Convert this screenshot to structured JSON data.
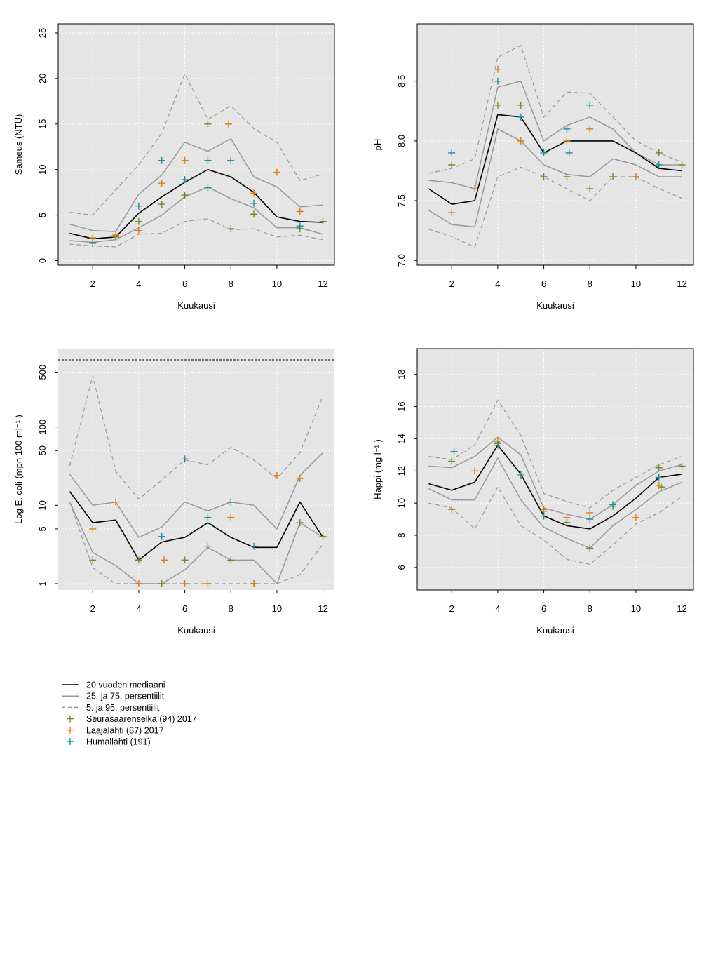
{
  "legend": {
    "items": [
      {
        "label": "20 vuoden mediaani",
        "kind": "line",
        "color": "#000000"
      },
      {
        "label": "25. ja 75. persentiilit",
        "kind": "line",
        "color": "#999999"
      },
      {
        "label": "5. ja 95. persentiilit",
        "kind": "dash",
        "color": "#999999"
      },
      {
        "label": "Seurasaarenselkä (94) 2017",
        "kind": "plus",
        "color": "#6b8e23"
      },
      {
        "label": "Laajalahti (87) 2017",
        "kind": "plus",
        "color": "#e07b10"
      },
      {
        "label": "Humallahti (191)",
        "kind": "plus",
        "color": "#17929a"
      }
    ]
  },
  "colors": {
    "panel_bg": "#e5e5e5",
    "median": "#000000",
    "quartile": "#999999",
    "percentile": "#999999",
    "seurasaarenselka": "#6b8e23",
    "laajalahti": "#e07b10",
    "humallahti": "#17929a"
  },
  "chart_data": [
    {
      "type": "line",
      "xlabel": "Kuukausi",
      "ylabel": "Sameus (NTU)",
      "xlim": [
        0.5,
        12.5
      ],
      "ylim": [
        -0.5,
        26
      ],
      "xticks": [
        2,
        4,
        6,
        8,
        10,
        12
      ],
      "yticks": [
        0,
        5,
        10,
        15,
        20,
        25
      ],
      "grid": true,
      "x": [
        1,
        2,
        3,
        4,
        5,
        6,
        7,
        8,
        9,
        10,
        11,
        12
      ],
      "series": [
        {
          "role": "p95",
          "values": [
            5.3,
            5.0,
            7.8,
            10.5,
            14.0,
            20.5,
            15.5,
            17.0,
            14.5,
            13.0,
            8.8,
            9.5
          ]
        },
        {
          "role": "q75",
          "values": [
            4.0,
            3.3,
            3.2,
            7.3,
            9.4,
            13.0,
            12.0,
            13.4,
            9.2,
            8.1,
            5.9,
            6.1
          ]
        },
        {
          "role": "median",
          "values": [
            3.0,
            2.4,
            2.6,
            5.2,
            7.0,
            8.6,
            10.0,
            9.2,
            7.5,
            4.8,
            4.3,
            4.2
          ]
        },
        {
          "role": "q25",
          "values": [
            2.2,
            2.0,
            2.3,
            3.6,
            5.0,
            7.0,
            8.1,
            6.8,
            5.8,
            3.6,
            3.6,
            2.9
          ]
        },
        {
          "role": "p5",
          "values": [
            1.8,
            1.6,
            1.5,
            2.9,
            3.0,
            4.3,
            4.6,
            3.4,
            3.5,
            2.6,
            2.8,
            2.3
          ]
        }
      ],
      "points": [
        {
          "site": "seurasaarenselka",
          "x": [
            2,
            3,
            4,
            5,
            6,
            7,
            8,
            9,
            11,
            12
          ],
          "y": [
            2.0,
            2.6,
            4.3,
            6.2,
            7.2,
            15.0,
            3.5,
            5.1,
            3.5,
            4.3
          ]
        },
        {
          "site": "laajalahti",
          "x": [
            2,
            3,
            4,
            5,
            6,
            7.9,
            9,
            10,
            11
          ],
          "y": [
            2.5,
            2.8,
            3.3,
            8.5,
            11.0,
            15.0,
            7.4,
            9.7,
            5.4
          ]
        },
        {
          "site": "humallahti",
          "x": [
            2,
            4,
            5,
            6,
            7,
            7,
            8,
            9,
            11
          ],
          "y": [
            1.9,
            6.0,
            11.0,
            8.9,
            11.0,
            8.0,
            11.0,
            6.3,
            3.8
          ]
        }
      ]
    },
    {
      "type": "line",
      "xlabel": "Kuukausi",
      "ylabel": "pH",
      "xlim": [
        0.5,
        12.5
      ],
      "ylim": [
        6.96,
        8.98
      ],
      "xticks": [
        2,
        4,
        6,
        8,
        10,
        12
      ],
      "yticks": [
        7.0,
        7.5,
        8.0,
        8.5
      ],
      "ytick_labels": [
        "7.0",
        "7.5",
        "8.0",
        "8.5"
      ],
      "grid": true,
      "x": [
        1,
        2,
        3,
        4,
        5,
        6,
        7,
        8,
        9,
        10,
        11,
        12
      ],
      "series": [
        {
          "role": "p95",
          "values": [
            7.73,
            7.77,
            7.85,
            8.7,
            8.8,
            8.2,
            8.41,
            8.4,
            8.2,
            8.0,
            7.9,
            7.82
          ]
        },
        {
          "role": "q75",
          "values": [
            7.67,
            7.65,
            7.6,
            8.45,
            8.5,
            8.0,
            8.13,
            8.2,
            8.1,
            7.9,
            7.8,
            7.8
          ]
        },
        {
          "role": "median",
          "values": [
            7.6,
            7.47,
            7.5,
            8.22,
            8.2,
            7.9,
            8.0,
            8.0,
            8.0,
            7.9,
            7.77,
            7.75
          ]
        },
        {
          "role": "q25",
          "values": [
            7.42,
            7.3,
            7.28,
            8.1,
            8.0,
            7.8,
            7.72,
            7.7,
            7.85,
            7.8,
            7.7,
            7.7
          ]
        },
        {
          "role": "p5",
          "values": [
            7.26,
            7.2,
            7.11,
            7.7,
            7.78,
            7.7,
            7.6,
            7.5,
            7.7,
            7.7,
            7.6,
            7.52
          ]
        }
      ],
      "points": [
        {
          "site": "seurasaarenselka",
          "x": [
            2,
            4,
            5,
            6,
            7,
            8,
            9,
            11,
            12
          ],
          "y": [
            7.8,
            8.3,
            8.3,
            7.7,
            7.7,
            7.6,
            7.7,
            7.9,
            7.8
          ]
        },
        {
          "site": "laajalahti",
          "x": [
            2,
            3,
            4,
            5,
            7,
            8,
            10
          ],
          "y": [
            7.4,
            7.6,
            8.6,
            8.0,
            8.0,
            8.1,
            7.7
          ]
        },
        {
          "site": "humallahti",
          "x": [
            2,
            4,
            5,
            6,
            7,
            7.1,
            8,
            11
          ],
          "y": [
            7.9,
            8.5,
            8.2,
            7.9,
            8.1,
            7.9,
            8.3,
            7.8
          ]
        }
      ]
    },
    {
      "type": "line",
      "xlabel": "Kuukausi",
      "ylabel": "Log E. coli (mpn 100 ml⁻¹ )",
      "xlim": [
        0.5,
        12.5
      ],
      "ylim": [
        0.83,
        1000
      ],
      "log_y": true,
      "xticks": [
        2,
        4,
        6,
        8,
        10,
        12
      ],
      "yticks": [
        1,
        5,
        10,
        50,
        100,
        500
      ],
      "grid": true,
      "x": [
        1,
        2,
        3,
        4,
        5,
        6,
        7,
        8,
        9,
        10,
        11,
        12
      ],
      "series": [
        {
          "role": "p95",
          "values": [
            32,
            450,
            27,
            12,
            21,
            38,
            33,
            55,
            38,
            22,
            47,
            250
          ]
        },
        {
          "role": "q75",
          "values": [
            25,
            10,
            11,
            3.9,
            5.3,
            11,
            8.5,
            11,
            10,
            5.0,
            24,
            47
          ]
        },
        {
          "role": "median",
          "values": [
            15,
            6.0,
            6.5,
            2.0,
            3.4,
            3.9,
            6.0,
            3.9,
            2.9,
            2.9,
            11,
            3.9
          ]
        },
        {
          "role": "q25",
          "values": [
            11,
            2.5,
            1.7,
            1.0,
            1.0,
            1.5,
            2.9,
            2.0,
            2.0,
            1.0,
            6.0,
            3.9
          ]
        },
        {
          "role": "p5",
          "values": [
            11,
            1.6,
            1.0,
            1.0,
            1.0,
            1.0,
            1.0,
            1.0,
            1.0,
            1.0,
            1.3,
            3.2
          ]
        }
      ],
      "points": [
        {
          "site": "seurasaarenselka",
          "x": [
            2,
            4,
            5,
            6,
            7,
            8,
            9,
            11,
            12
          ],
          "y": [
            2.0,
            2.0,
            1.0,
            2.0,
            3.0,
            2.0,
            1.0,
            6.0,
            4.0
          ]
        },
        {
          "site": "laajalahti",
          "x": [
            2,
            3,
            4,
            5.1,
            6,
            7,
            8,
            9,
            10,
            11
          ],
          "y": [
            5.0,
            11,
            1.0,
            2.0,
            1.0,
            1.0,
            7.0,
            1.0,
            24,
            22
          ]
        },
        {
          "site": "humallahti",
          "x": [
            5,
            6,
            7,
            8,
            9
          ],
          "y": [
            4.0,
            39,
            7.0,
            11,
            3.0
          ]
        }
      ]
    },
    {
      "type": "line",
      "xlabel": "Kuukausi",
      "ylabel": "Happi (mg l⁻¹ )",
      "xlim": [
        0.5,
        12.5
      ],
      "ylim": [
        4.6,
        19.6
      ],
      "xticks": [
        2,
        4,
        6,
        8,
        10,
        12
      ],
      "yticks": [
        6,
        8,
        10,
        12,
        14,
        16,
        18
      ],
      "grid": true,
      "x": [
        1,
        2,
        3,
        4,
        5,
        6,
        7,
        8,
        9,
        10,
        11,
        12
      ],
      "series": [
        {
          "role": "p95",
          "values": [
            12.9,
            12.7,
            13.6,
            16.4,
            14.2,
            10.6,
            10.1,
            9.7,
            10.8,
            11.6,
            12.4,
            12.9
          ]
        },
        {
          "role": "q75",
          "values": [
            12.3,
            12.2,
            12.9,
            14.1,
            13.0,
            9.7,
            9.3,
            9.0,
            9.9,
            11.1,
            12.0,
            12.4
          ]
        },
        {
          "role": "median",
          "values": [
            11.2,
            10.8,
            11.3,
            13.6,
            11.8,
            9.2,
            8.6,
            8.4,
            9.2,
            10.3,
            11.6,
            11.8
          ]
        },
        {
          "role": "q25",
          "values": [
            10.9,
            10.2,
            10.2,
            12.8,
            10.2,
            8.5,
            7.8,
            7.2,
            8.6,
            9.6,
            10.7,
            11.3
          ]
        },
        {
          "role": "p5",
          "values": [
            10.0,
            9.7,
            8.4,
            11.0,
            8.6,
            7.7,
            6.5,
            6.2,
            7.4,
            8.7,
            9.4,
            10.4
          ]
        }
      ],
      "points": [
        {
          "site": "seurasaarenselka",
          "x": [
            2,
            4,
            5,
            6,
            7,
            8,
            9,
            11,
            11.1,
            12
          ],
          "y": [
            12.6,
            13.7,
            11.7,
            9.5,
            8.8,
            7.2,
            9.8,
            12.2,
            11.0,
            12.3
          ]
        },
        {
          "site": "laajalahti",
          "x": [
            2,
            3,
            4,
            6,
            7,
            8,
            10,
            11
          ],
          "y": [
            9.6,
            12.0,
            13.8,
            9.6,
            9.1,
            9.4,
            9.1,
            11.1
          ]
        },
        {
          "site": "humallahti",
          "x": [
            2.1,
            4,
            5,
            6,
            8,
            9,
            11
          ],
          "y": [
            13.2,
            13.6,
            11.8,
            9.2,
            9.0,
            9.9,
            11.6
          ]
        }
      ]
    }
  ]
}
